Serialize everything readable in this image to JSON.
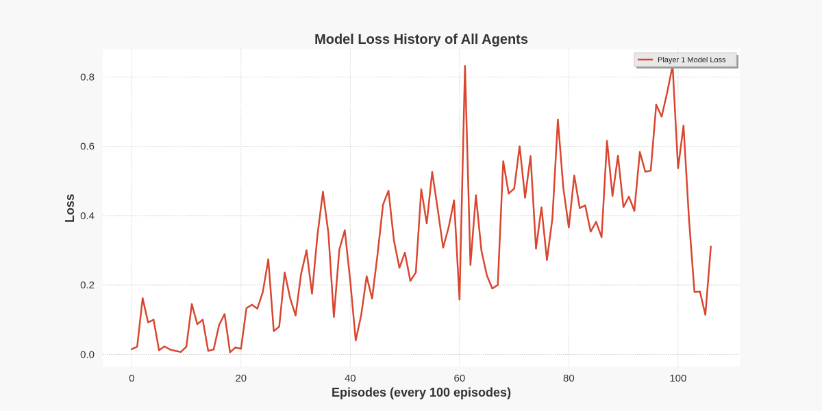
{
  "chart_data": {
    "type": "line",
    "title": "Model Loss History of All Agents",
    "xlabel": "Episodes (every 100 episodes)",
    "ylabel": "Loss",
    "xlim": [
      -5.3,
      111.3
    ],
    "ylim": [
      -0.035,
      0.88
    ],
    "x_ticks": [
      0,
      20,
      40,
      60,
      80,
      100
    ],
    "y_ticks": [
      0.0,
      0.2,
      0.4,
      0.6,
      0.8
    ],
    "grid": true,
    "legend_position": "top-right",
    "colors": {
      "series": "#d9462f",
      "plot_bg": "#ffffff",
      "page_bg": "#f8f8f8"
    },
    "series": [
      {
        "name": "Player 1 Model Loss",
        "x": [
          0,
          1,
          2,
          3,
          4,
          5,
          6,
          7,
          8,
          9,
          10,
          11,
          12,
          13,
          14,
          15,
          16,
          17,
          18,
          19,
          20,
          21,
          22,
          23,
          24,
          25,
          26,
          27,
          28,
          29,
          30,
          31,
          32,
          33,
          34,
          35,
          36,
          37,
          38,
          39,
          40,
          41,
          42,
          43,
          44,
          45,
          46,
          47,
          48,
          49,
          50,
          51,
          52,
          53,
          54,
          55,
          56,
          57,
          58,
          59,
          60,
          61,
          62,
          63,
          64,
          65,
          66,
          67,
          68,
          69,
          70,
          71,
          72,
          73,
          74,
          75,
          76,
          77,
          78,
          79,
          80,
          81,
          82,
          83,
          84,
          85,
          86,
          87,
          88,
          89,
          90,
          91,
          92,
          93,
          94,
          95,
          96,
          97,
          98,
          99,
          100,
          101,
          102,
          103,
          104,
          105,
          106
        ],
        "y": [
          0.015,
          0.022,
          0.162,
          0.092,
          0.1,
          0.012,
          0.023,
          0.014,
          0.01,
          0.007,
          0.022,
          0.145,
          0.087,
          0.1,
          0.01,
          0.014,
          0.085,
          0.116,
          0.006,
          0.02,
          0.016,
          0.133,
          0.143,
          0.132,
          0.18,
          0.274,
          0.067,
          0.08,
          0.236,
          0.162,
          0.112,
          0.232,
          0.3,
          0.175,
          0.344,
          0.469,
          0.35,
          0.108,
          0.302,
          0.358,
          0.212,
          0.04,
          0.113,
          0.225,
          0.161,
          0.289,
          0.432,
          0.472,
          0.328,
          0.25,
          0.293,
          0.212,
          0.236,
          0.476,
          0.378,
          0.526,
          0.42,
          0.308,
          0.366,
          0.444,
          0.158,
          0.832,
          0.258,
          0.459,
          0.3,
          0.228,
          0.19,
          0.2,
          0.557,
          0.464,
          0.478,
          0.6,
          0.452,
          0.572,
          0.305,
          0.424,
          0.272,
          0.392,
          0.677,
          0.48,
          0.366,
          0.516,
          0.422,
          0.43,
          0.354,
          0.382,
          0.338,
          0.616,
          0.457,
          0.573,
          0.425,
          0.455,
          0.414,
          0.584,
          0.527,
          0.53,
          0.72,
          0.686,
          0.755,
          0.833,
          0.537,
          0.66,
          0.39,
          0.18,
          0.181,
          0.114,
          0.311
        ]
      }
    ]
  }
}
